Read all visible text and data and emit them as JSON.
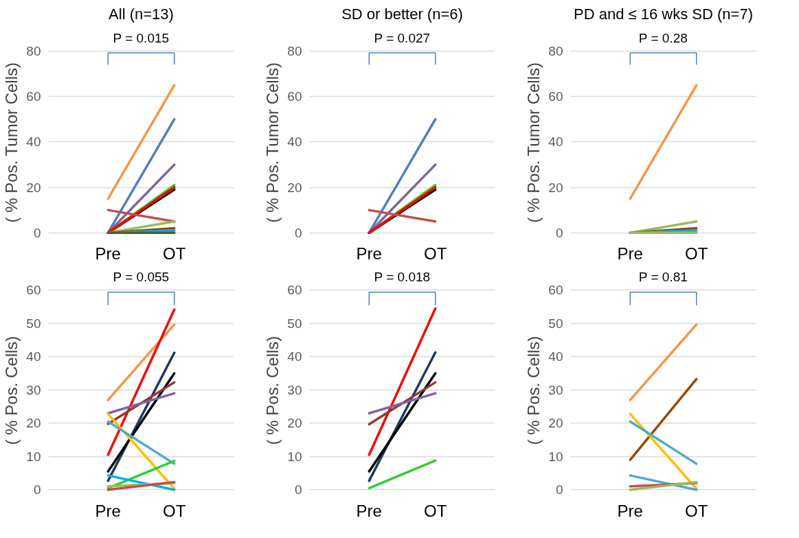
{
  "chart_data": [
    {
      "type": "line",
      "title": "All (n=13)",
      "ylabel": "( % Pos. Tumor Cells)",
      "categories": [
        "Pre",
        "OT"
      ],
      "ylim": [
        0,
        80
      ],
      "yticks": [
        0,
        20,
        40,
        60,
        80
      ],
      "grid": "y",
      "annotations": [
        "P = 0.015"
      ],
      "series": [
        {
          "color": "#f79646",
          "values": [
            15,
            65
          ]
        },
        {
          "color": "#4f81bd",
          "values": [
            0,
            50
          ]
        },
        {
          "color": "#8064a2",
          "values": [
            0,
            30
          ]
        },
        {
          "color": "#33cc33",
          "values": [
            0,
            21
          ]
        },
        {
          "color": "#000000",
          "values": [
            0,
            19
          ]
        },
        {
          "color": "#ff0000",
          "values": [
            0,
            20
          ]
        },
        {
          "color": "#c0504d",
          "values": [
            10,
            5
          ]
        },
        {
          "color": "#9bbb59",
          "values": [
            0,
            5
          ]
        },
        {
          "color": "#984807",
          "values": [
            0,
            2
          ]
        },
        {
          "color": "#4f81bd",
          "values": [
            0,
            1
          ]
        },
        {
          "color": "#00b0f0",
          "values": [
            0,
            1
          ]
        },
        {
          "color": "#4f6228",
          "values": [
            0,
            0
          ]
        }
      ]
    },
    {
      "type": "line",
      "title": "SD or better (n=6)",
      "ylabel": "( % Pos. Tumor Cells)",
      "categories": [
        "Pre",
        "OT"
      ],
      "ylim": [
        0,
        80
      ],
      "yticks": [
        0,
        20,
        40,
        60,
        80
      ],
      "grid": "y",
      "annotations": [
        "P = 0.027"
      ],
      "series": [
        {
          "color": "#4f81bd",
          "values": [
            0,
            50
          ]
        },
        {
          "color": "#8064a2",
          "values": [
            0,
            30
          ]
        },
        {
          "color": "#33cc33",
          "values": [
            0,
            21
          ]
        },
        {
          "color": "#000000",
          "values": [
            0,
            19
          ]
        },
        {
          "color": "#ff0000",
          "values": [
            0,
            20
          ]
        },
        {
          "color": "#c0504d",
          "values": [
            10,
            5
          ]
        }
      ]
    },
    {
      "type": "line",
      "title": "PD and ≤ 16 wks SD (n=7)",
      "ylabel": "( % Pos. Tumor Cells)",
      "categories": [
        "Pre",
        "OT"
      ],
      "ylim": [
        0,
        80
      ],
      "yticks": [
        0,
        20,
        40,
        60,
        80
      ],
      "grid": "y",
      "annotations": [
        "P = 0.28"
      ],
      "series": [
        {
          "color": "#f79646",
          "values": [
            15,
            65
          ]
        },
        {
          "color": "#9bbb59",
          "values": [
            0,
            5
          ]
        },
        {
          "color": "#984807",
          "values": [
            0,
            2
          ]
        },
        {
          "color": "#4f81bd",
          "values": [
            0,
            1
          ]
        },
        {
          "color": "#00b0f0",
          "values": [
            0,
            1
          ]
        },
        {
          "color": "#9bbb59",
          "values": [
            0,
            0
          ]
        }
      ]
    },
    {
      "type": "line",
      "ylabel": "( % Pos. Cells)",
      "categories": [
        "Pre",
        "OT"
      ],
      "ylim": [
        0,
        60
      ],
      "yticks": [
        0,
        10,
        20,
        30,
        40,
        50,
        60
      ],
      "grid": "y",
      "annotations": [
        "P = 0.055"
      ],
      "series": [
        {
          "color": "#f79646",
          "values": [
            27,
            49.7
          ]
        },
        {
          "color": "#ff0000",
          "values": [
            10.5,
            54.2
          ]
        },
        {
          "color": "#1f3864",
          "values": [
            2.7,
            41.2
          ]
        },
        {
          "color": "#000000",
          "values": [
            5.5,
            35
          ]
        },
        {
          "color": "#953735",
          "values": [
            19.8,
            32.3
          ]
        },
        {
          "color": "#8064a2",
          "values": [
            23,
            29
          ]
        },
        {
          "color": "#ffc000",
          "values": [
            22.8,
            0.3
          ]
        },
        {
          "color": "#4bacc6",
          "values": [
            20.5,
            7.8
          ]
        },
        {
          "color": "#33cc33",
          "values": [
            0.5,
            8.7
          ]
        },
        {
          "color": "#00b0f0",
          "values": [
            4.3,
            0
          ]
        },
        {
          "color": "#9bbb59",
          "values": [
            1,
            2
          ]
        },
        {
          "color": "#c0504d",
          "values": [
            0,
            2.3
          ]
        }
      ]
    },
    {
      "type": "line",
      "ylabel": "( % Pos. Cells)",
      "categories": [
        "Pre",
        "OT"
      ],
      "ylim": [
        0,
        60
      ],
      "yticks": [
        0,
        10,
        20,
        30,
        40,
        50,
        60
      ],
      "grid": "y",
      "annotations": [
        "P = 0.018"
      ],
      "series": [
        {
          "color": "#ff0000",
          "values": [
            10.5,
            54.5
          ]
        },
        {
          "color": "#1f3864",
          "values": [
            2.7,
            41.3
          ]
        },
        {
          "color": "#000000",
          "values": [
            5.5,
            35
          ]
        },
        {
          "color": "#953735",
          "values": [
            19.7,
            32.3
          ]
        },
        {
          "color": "#8064a2",
          "values": [
            23,
            29
          ]
        },
        {
          "color": "#33cc33",
          "values": [
            0.5,
            8.8
          ]
        }
      ]
    },
    {
      "type": "line",
      "ylabel": "( % Pos. Cells)",
      "categories": [
        "Pre",
        "OT"
      ],
      "ylim": [
        0,
        60
      ],
      "yticks": [
        0,
        10,
        20,
        30,
        40,
        50,
        60
      ],
      "grid": "y",
      "annotations": [
        "P = 0.81"
      ],
      "series": [
        {
          "color": "#f79646",
          "values": [
            27,
            49.7
          ]
        },
        {
          "color": "#984807",
          "values": [
            9,
            33.3
          ]
        },
        {
          "color": "#ffc000",
          "values": [
            22.8,
            0.3
          ]
        },
        {
          "color": "#4bacc6",
          "values": [
            20.5,
            7.8
          ]
        },
        {
          "color": "#4bacc6",
          "values": [
            4.3,
            0
          ]
        },
        {
          "color": "#c0504d",
          "values": [
            1,
            2
          ]
        },
        {
          "color": "#9bbb59",
          "values": [
            0,
            2.3
          ]
        }
      ]
    }
  ]
}
